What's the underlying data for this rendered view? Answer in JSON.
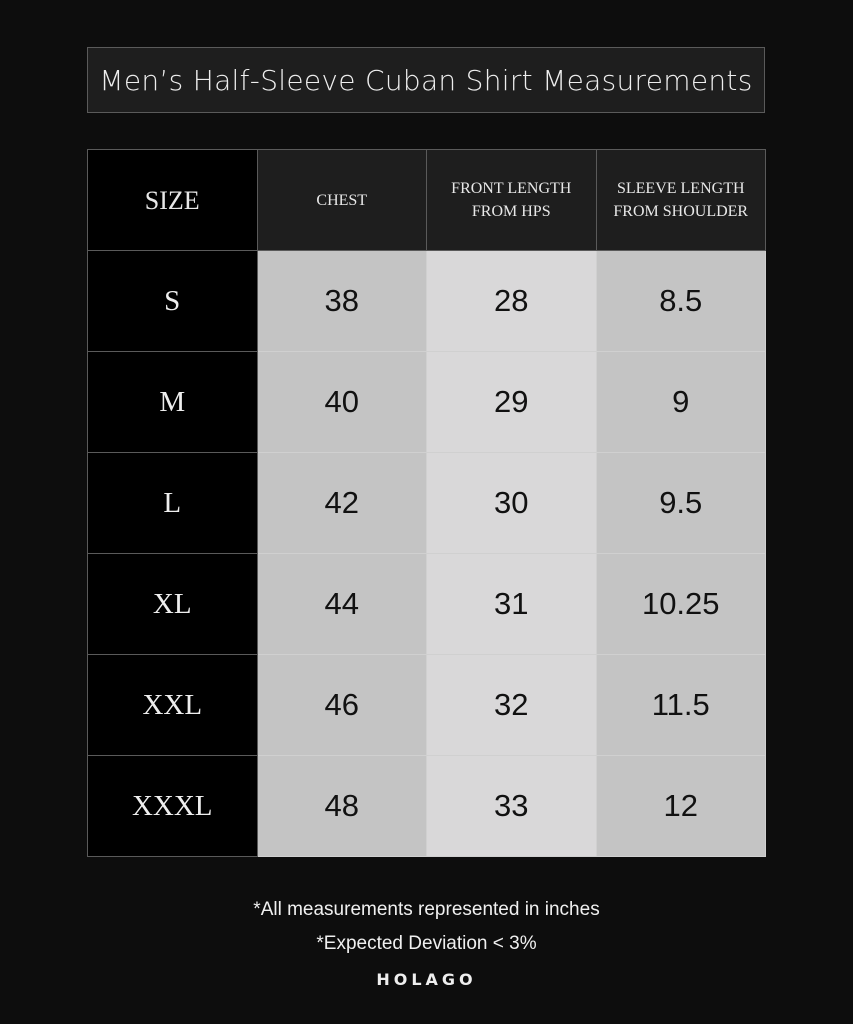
{
  "title": "Men’s Half-Sleeve Cuban Shirt Measurements",
  "table": {
    "headers": [
      "SIZE",
      "CHEST",
      "FRONT LENGTH\nFROM HPS",
      "SLEEVE LENGTH\nFROM SHOULDER"
    ],
    "rows": [
      [
        "S",
        "38",
        "28",
        "8.5"
      ],
      [
        "M",
        "40",
        "29",
        "9"
      ],
      [
        "L",
        "42",
        "30",
        "9.5"
      ],
      [
        "XL",
        "44",
        "31",
        "10.25"
      ],
      [
        "XXL",
        "46",
        "32",
        "11.5"
      ],
      [
        "XXXL",
        "48",
        "33",
        "12"
      ]
    ]
  },
  "notes": [
    "*All measurements represented in inches",
    "*Expected Deviation < 3%"
  ],
  "brand": "HOLAGO"
}
